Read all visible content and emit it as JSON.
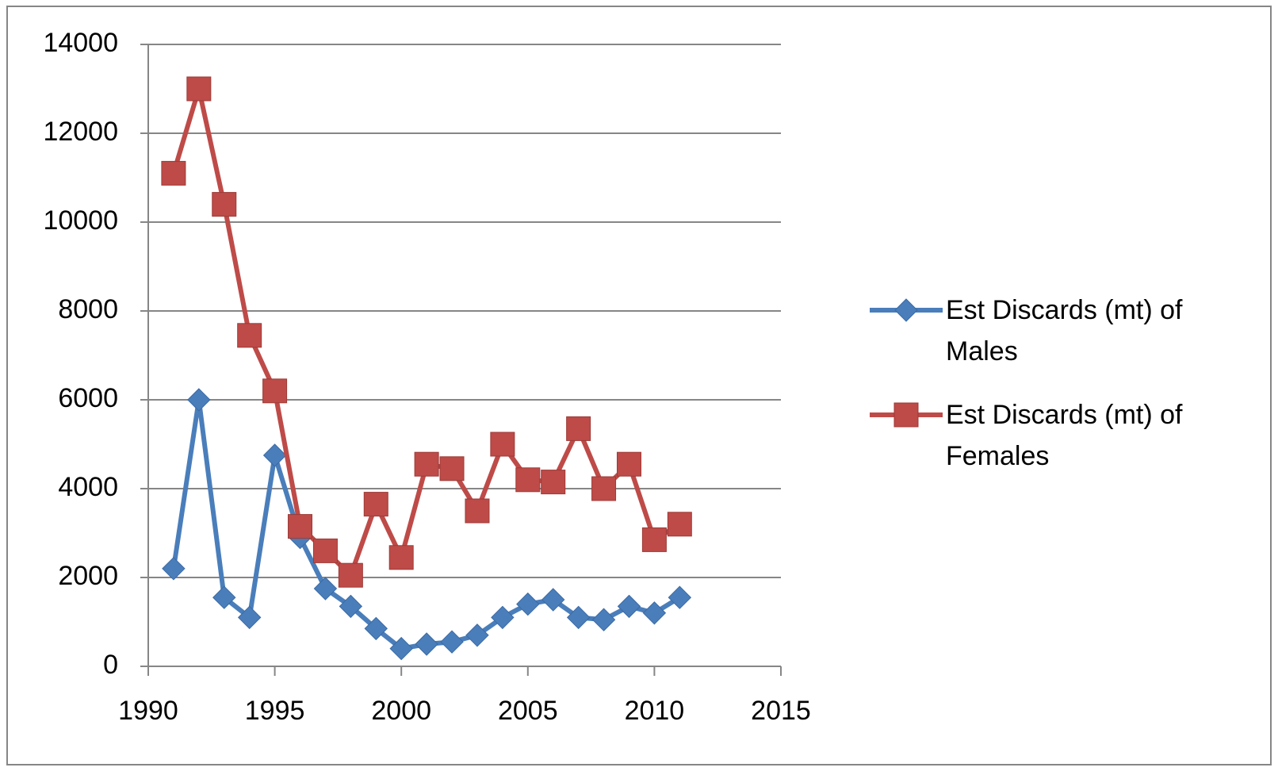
{
  "chart_data": {
    "type": "line",
    "x": [
      1991,
      1992,
      1993,
      1994,
      1995,
      1996,
      1997,
      1998,
      1999,
      2000,
      2001,
      2002,
      2003,
      2004,
      2005,
      2006,
      2007,
      2008,
      2009,
      2010,
      2011
    ],
    "series": [
      {
        "name": "Est Discards (mt) of Males",
        "color": "#4a7ebb",
        "marker": "diamond",
        "values": [
          2200,
          6000,
          1550,
          1100,
          4750,
          2900,
          1750,
          1350,
          850,
          400,
          500,
          550,
          700,
          1100,
          1400,
          1500,
          1100,
          1050,
          1350,
          1200,
          1550
        ]
      },
      {
        "name": "Est Discards (mt) of Females",
        "color": "#be4b48",
        "marker": "square",
        "values": [
          11100,
          13000,
          10400,
          7450,
          6200,
          3150,
          2600,
          2050,
          3650,
          2450,
          4550,
          4450,
          3500,
          5000,
          4200,
          4150,
          5350,
          4000,
          4550,
          2850,
          3200
        ]
      }
    ],
    "xlim": [
      1990,
      2015
    ],
    "xticks": [
      1990,
      1995,
      2000,
      2005,
      2010,
      2015
    ],
    "ylim": [
      0,
      14000
    ],
    "yticks": [
      0,
      2000,
      4000,
      6000,
      8000,
      10000,
      12000,
      14000
    ],
    "grid": true,
    "legend": "right"
  }
}
